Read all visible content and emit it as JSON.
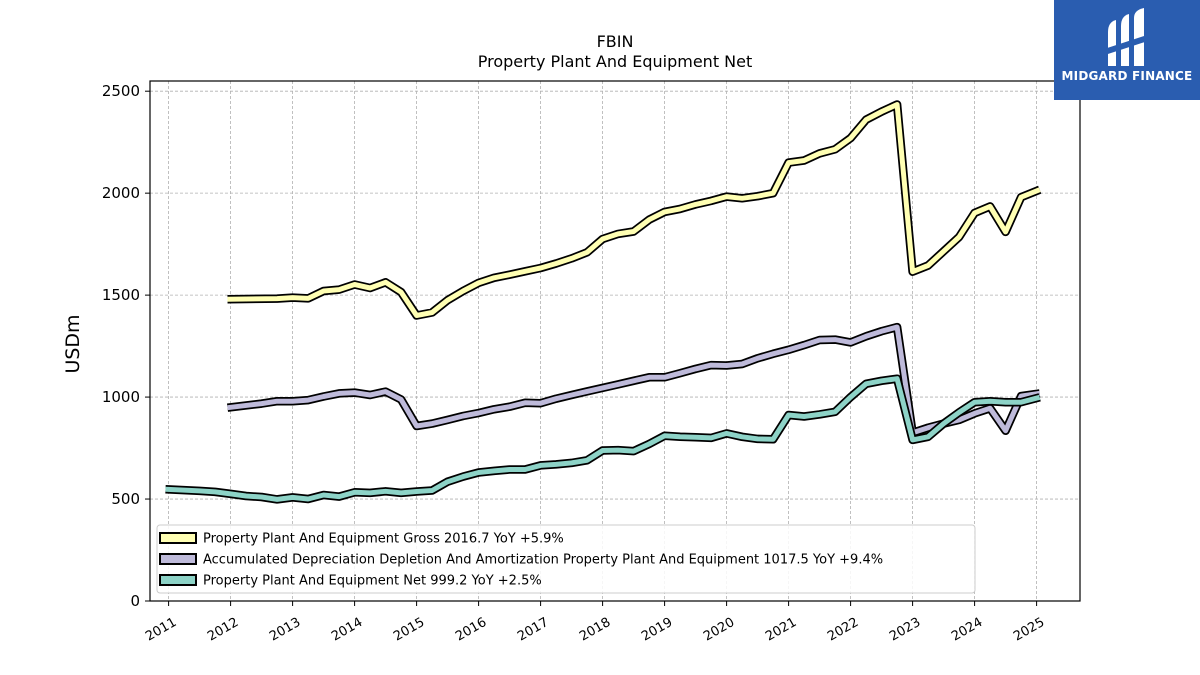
{
  "chart_data": {
    "type": "line",
    "title": "FBIN",
    "subtitle": "Property Plant And Equipment Net",
    "ylabel": "USDm",
    "xlabel": "",
    "ylim": [
      0,
      2550
    ],
    "xlim": [
      2010.7,
      2025.7
    ],
    "yticks": [
      0,
      500,
      1000,
      1500,
      2000,
      2500
    ],
    "xticks": [
      "2011",
      "2012",
      "2013",
      "2014",
      "2015",
      "2016",
      "2017",
      "2018",
      "2019",
      "2020",
      "2021",
      "2022",
      "2023",
      "2024",
      "2025"
    ],
    "grid": true,
    "legend_position": "lower-left",
    "series": [
      {
        "name": "Property Plant And Equipment Gross  2016.7 YoY +5.9%",
        "color": "#ffffb3",
        "x": [
          2011.95,
          2012.75,
          2013.0,
          2013.25,
          2013.5,
          2013.75,
          2014.0,
          2014.25,
          2014.5,
          2014.75,
          2015.0,
          2015.25,
          2015.5,
          2015.75,
          2016.0,
          2016.25,
          2016.5,
          2016.75,
          2017.0,
          2017.25,
          2017.5,
          2017.75,
          2018.0,
          2018.25,
          2018.5,
          2018.75,
          2019.0,
          2019.25,
          2019.5,
          2019.75,
          2020.0,
          2020.25,
          2020.5,
          2020.75,
          2021.0,
          2021.25,
          2021.5,
          2021.75,
          2022.0,
          2022.25,
          2022.5,
          2022.75,
          2023.0,
          2023.25,
          2023.5,
          2023.75,
          2024.0,
          2024.25,
          2024.5,
          2024.75,
          2025.05
        ],
        "values": [
          1480,
          1483,
          1488,
          1484,
          1520,
          1527,
          1552,
          1535,
          1563,
          1515,
          1400,
          1415,
          1475,
          1520,
          1560,
          1585,
          1600,
          1617,
          1633,
          1655,
          1680,
          1710,
          1775,
          1800,
          1812,
          1870,
          1908,
          1923,
          1945,
          1962,
          1983,
          1975,
          1985,
          2000,
          2150,
          2160,
          2195,
          2215,
          2270,
          2360,
          2400,
          2435,
          1615,
          1645,
          1715,
          1785,
          1903,
          1935,
          1810,
          1980,
          2017
        ]
      },
      {
        "name": "Accumulated Depreciation Depletion And Amortization Property Plant And Equipment  1017.5 YoY +9.4%",
        "color": "#bebada",
        "x": [
          2011.95,
          2012.5,
          2012.75,
          2013.0,
          2013.25,
          2013.5,
          2013.75,
          2014.0,
          2014.25,
          2014.5,
          2014.75,
          2015.0,
          2015.25,
          2015.5,
          2015.75,
          2016.0,
          2016.25,
          2016.5,
          2016.75,
          2017.0,
          2017.25,
          2017.5,
          2017.75,
          2018.0,
          2018.25,
          2018.5,
          2018.75,
          2019.0,
          2019.25,
          2019.5,
          2019.75,
          2020.0,
          2020.25,
          2020.5,
          2020.75,
          2021.0,
          2021.25,
          2021.5,
          2021.75,
          2022.0,
          2022.25,
          2022.5,
          2022.75,
          2023.0,
          2023.25,
          2023.5,
          2023.75,
          2024.0,
          2024.25,
          2024.5,
          2024.75,
          2025.05
        ],
        "values": [
          948,
          968,
          980,
          980,
          985,
          1003,
          1018,
          1022,
          1010,
          1027,
          988,
          858,
          870,
          888,
          907,
          922,
          940,
          953,
          972,
          970,
          992,
          1010,
          1028,
          1045,
          1062,
          1080,
          1097,
          1097,
          1117,
          1138,
          1157,
          1155,
          1162,
          1190,
          1212,
          1232,
          1255,
          1280,
          1282,
          1268,
          1298,
          1323,
          1343,
          825,
          850,
          870,
          888,
          920,
          945,
          835,
          1005,
          1018
        ]
      },
      {
        "name": "Property Plant And Equipment Net  999.2 YoY +2.5%",
        "color": "#8dd3c7",
        "x": [
          2010.95,
          2011.5,
          2011.75,
          2012.0,
          2012.25,
          2012.5,
          2012.75,
          2013.0,
          2013.25,
          2013.5,
          2013.75,
          2014.0,
          2014.25,
          2014.5,
          2014.75,
          2015.0,
          2015.25,
          2015.5,
          2015.75,
          2016.0,
          2016.25,
          2016.5,
          2016.75,
          2017.0,
          2017.25,
          2017.5,
          2017.75,
          2018.0,
          2018.25,
          2018.5,
          2018.75,
          2019.0,
          2019.25,
          2019.5,
          2019.75,
          2020.0,
          2020.25,
          2020.5,
          2020.75,
          2021.0,
          2021.25,
          2021.5,
          2021.75,
          2022.0,
          2022.25,
          2022.5,
          2022.75,
          2023.0,
          2023.25,
          2023.5,
          2023.75,
          2024.0,
          2024.25,
          2024.5,
          2024.75,
          2025.05
        ],
        "values": [
          548,
          540,
          535,
          525,
          515,
          510,
          498,
          508,
          500,
          520,
          512,
          533,
          530,
          538,
          530,
          537,
          542,
          585,
          610,
          630,
          638,
          645,
          645,
          665,
          670,
          677,
          690,
          738,
          740,
          735,
          770,
          810,
          805,
          803,
          800,
          822,
          805,
          795,
          793,
          912,
          905,
          915,
          928,
          1000,
          1065,
          1080,
          1090,
          790,
          805,
          870,
          925,
          975,
          980,
          975,
          975,
          999
        ]
      }
    ]
  },
  "logo": {
    "text": "MIDGARD FINANCE"
  }
}
